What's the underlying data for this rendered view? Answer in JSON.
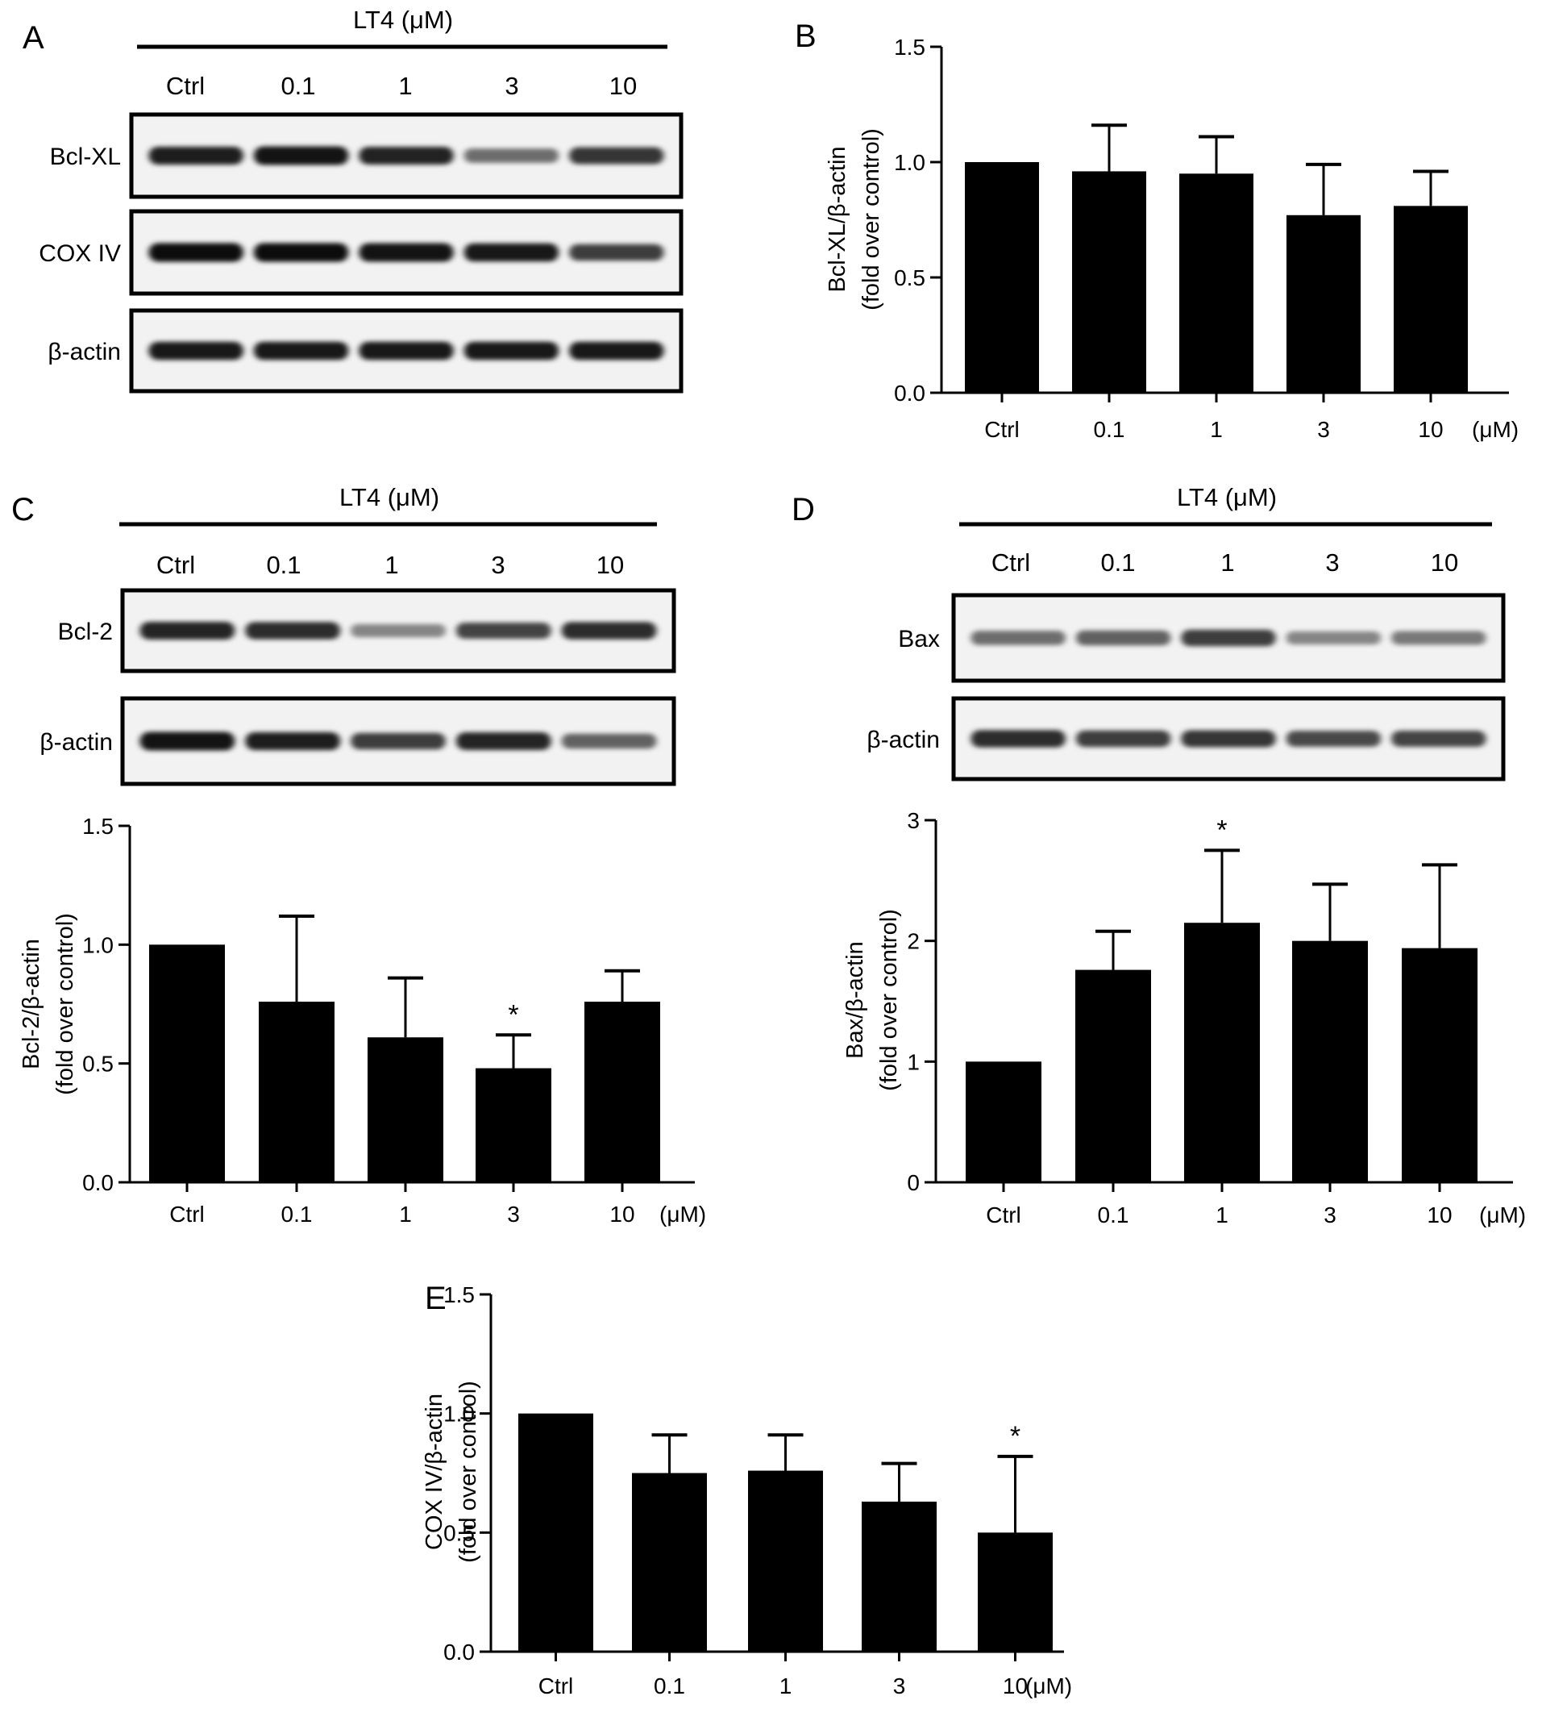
{
  "panels": {
    "A": {
      "letter": "A",
      "header": "LT4 (μM)",
      "lanes": [
        "Ctrl",
        "0.1",
        "1",
        "3",
        "10"
      ],
      "blots": [
        {
          "label": "Bcl-XL",
          "intensity": [
            0.88,
            0.92,
            0.86,
            0.55,
            0.78
          ]
        },
        {
          "label": "COX IV",
          "intensity": [
            0.95,
            0.95,
            0.92,
            0.9,
            0.75
          ]
        },
        {
          "label": "β-actin",
          "intensity": [
            0.9,
            0.9,
            0.9,
            0.9,
            0.9
          ]
        }
      ]
    },
    "B": {
      "letter": "B"
    },
    "C": {
      "letter": "C",
      "header": "LT4 (μM)",
      "lanes": [
        "Ctrl",
        "0.1",
        "1",
        "3",
        "10"
      ],
      "blots": [
        {
          "label": "Bcl-2",
          "intensity": [
            0.85,
            0.82,
            0.45,
            0.72,
            0.82
          ]
        },
        {
          "label": "β-actin",
          "intensity": [
            0.92,
            0.88,
            0.75,
            0.85,
            0.6
          ]
        }
      ]
    },
    "D": {
      "letter": "D",
      "header": "LT4 (μM)",
      "lanes": [
        "Ctrl",
        "0.1",
        "1",
        "3",
        "10"
      ],
      "blots": [
        {
          "label": "Bax",
          "intensity": [
            0.55,
            0.6,
            0.75,
            0.45,
            0.5
          ]
        },
        {
          "label": "β-actin",
          "intensity": [
            0.82,
            0.75,
            0.78,
            0.7,
            0.72
          ]
        }
      ]
    },
    "E": {
      "letter": "E"
    }
  },
  "chart_data": [
    {
      "panel": "B",
      "type": "bar",
      "categories": [
        "Ctrl",
        "0.1",
        "1",
        "3",
        "10"
      ],
      "values": [
        1.0,
        0.96,
        0.95,
        0.77,
        0.81
      ],
      "errors": [
        0,
        0.2,
        0.16,
        0.22,
        0.15
      ],
      "significant": [
        false,
        false,
        false,
        false,
        false
      ],
      "ylabel": "Bcl-XL/β-actin",
      "ylabel2": "(fold over control)",
      "xunit": "(μM)",
      "ylim": [
        0,
        1.5
      ],
      "yticks": [
        "0.0",
        "0.5",
        "1.0",
        "1.5"
      ]
    },
    {
      "panel": "C",
      "type": "bar",
      "categories": [
        "Ctrl",
        "0.1",
        "1",
        "3",
        "10"
      ],
      "values": [
        1.0,
        0.76,
        0.61,
        0.48,
        0.76
      ],
      "errors": [
        0,
        0.36,
        0.25,
        0.14,
        0.13
      ],
      "significant": [
        false,
        false,
        false,
        true,
        false
      ],
      "ylabel": "Bcl-2/β-actin",
      "ylabel2": "(fold over control)",
      "xunit": "(μM)",
      "ylim": [
        0,
        1.5
      ],
      "yticks": [
        "0.0",
        "0.5",
        "1.0",
        "1.5"
      ]
    },
    {
      "panel": "D",
      "type": "bar",
      "categories": [
        "Ctrl",
        "0.1",
        "1",
        "3",
        "10"
      ],
      "values": [
        1.0,
        1.76,
        2.15,
        2.0,
        1.94
      ],
      "errors": [
        0,
        0.32,
        0.6,
        0.47,
        0.69
      ],
      "significant": [
        false,
        false,
        true,
        false,
        false
      ],
      "ylabel": "Bax/β-actin",
      "ylabel2": "(fold over control)",
      "xunit": "(μM)",
      "ylim": [
        0,
        3
      ],
      "yticks": [
        "0",
        "1",
        "2",
        "3"
      ]
    },
    {
      "panel": "E",
      "type": "bar",
      "categories": [
        "Ctrl",
        "0.1",
        "1",
        "3",
        "10"
      ],
      "values": [
        1.0,
        0.75,
        0.76,
        0.63,
        0.5
      ],
      "errors": [
        0,
        0.16,
        0.15,
        0.16,
        0.32
      ],
      "significant": [
        false,
        false,
        false,
        false,
        true
      ],
      "ylabel": "COX IV/β-actin",
      "ylabel2": "(fold over control)",
      "xunit": "(μM)",
      "ylim": [
        0,
        1.5
      ],
      "yticks": [
        "0.0",
        "0.5",
        "1.0",
        "1.5"
      ]
    }
  ],
  "marker": "*"
}
